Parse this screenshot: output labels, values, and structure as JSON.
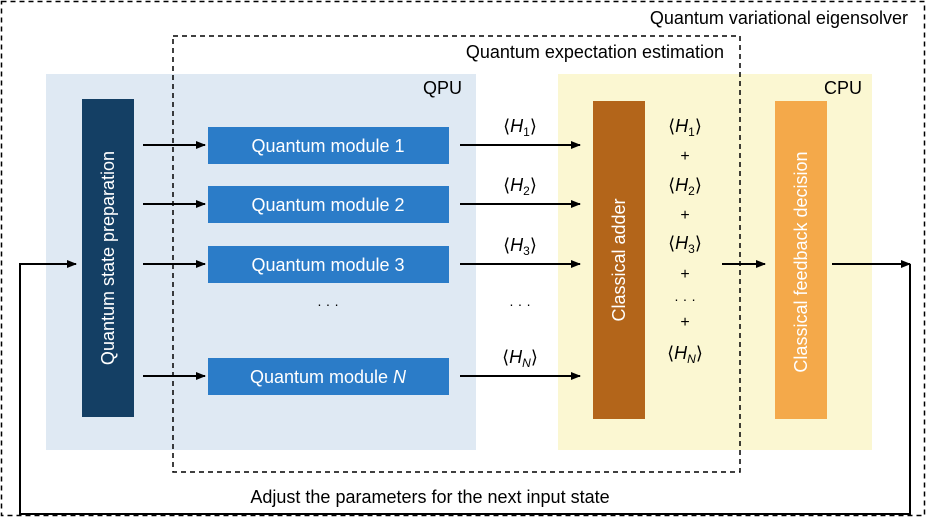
{
  "outer_title": "Quantum variational eigensolver",
  "inner_title": "Quantum expectation estimation",
  "qpu_label": "QPU",
  "cpu_label": "CPU",
  "prep_label": "Quantum state preparation",
  "modules": [
    {
      "prefix": "Quantum module ",
      "num": "1"
    },
    {
      "prefix": "Quantum module ",
      "num": "2"
    },
    {
      "prefix": "Quantum module ",
      "num": "3"
    },
    {
      "prefix": "Quantum module ",
      "num": "N"
    }
  ],
  "expectations": [
    {
      "base": "H",
      "sub": "1"
    },
    {
      "base": "H",
      "sub": "2"
    },
    {
      "base": "H",
      "sub": "3"
    },
    {
      "base": "H",
      "sub": "N"
    }
  ],
  "dots": "· · ·",
  "plus": "+",
  "adder_label": "Classical adder",
  "feedback_label": "Classical feedback decision",
  "bottom_text": "Adjust the parameters for the next input state",
  "colors": {
    "qpu_bg": "#dfe9f3",
    "cpu_bg": "#fbf7d2",
    "prep": "#143f64",
    "module": "#2b7cc8",
    "adder": "#b3651a",
    "feedback": "#f4a94a"
  }
}
